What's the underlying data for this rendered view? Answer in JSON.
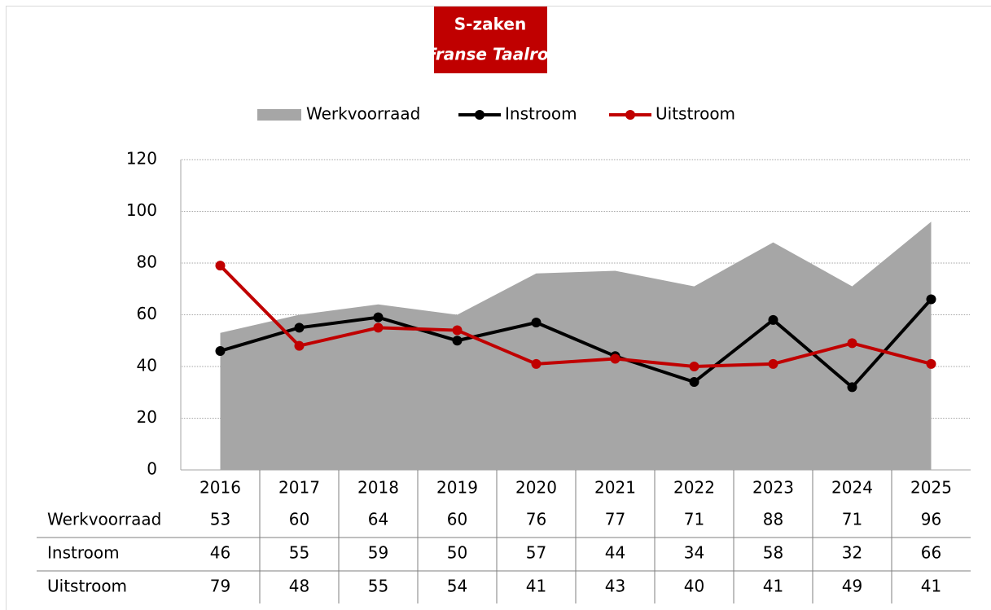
{
  "chart_data": {
    "type": "combo",
    "title": "S-zaken",
    "subtitle": "Franse Taalrol",
    "categories": [
      "2016",
      "2017",
      "2018",
      "2019",
      "2020",
      "2021",
      "2022",
      "2023",
      "2024",
      "2025"
    ],
    "series": [
      {
        "name": "Werkvoorraad",
        "type": "area",
        "color": "#a6a6a6",
        "values": [
          53,
          60,
          64,
          60,
          76,
          77,
          71,
          88,
          71,
          96
        ]
      },
      {
        "name": "Instroom",
        "type": "line",
        "color": "#000000",
        "values": [
          46,
          55,
          59,
          50,
          57,
          44,
          34,
          58,
          32,
          66
        ]
      },
      {
        "name": "Uitstroom",
        "type": "line",
        "color": "#c00000",
        "values": [
          79,
          48,
          55,
          54,
          41,
          43,
          40,
          41,
          49,
          41
        ]
      }
    ],
    "ylim": [
      0,
      120
    ],
    "yticks": [
      0,
      20,
      40,
      60,
      80,
      100,
      120
    ],
    "grid": true,
    "title_color": "#c00000",
    "legend": "top"
  }
}
